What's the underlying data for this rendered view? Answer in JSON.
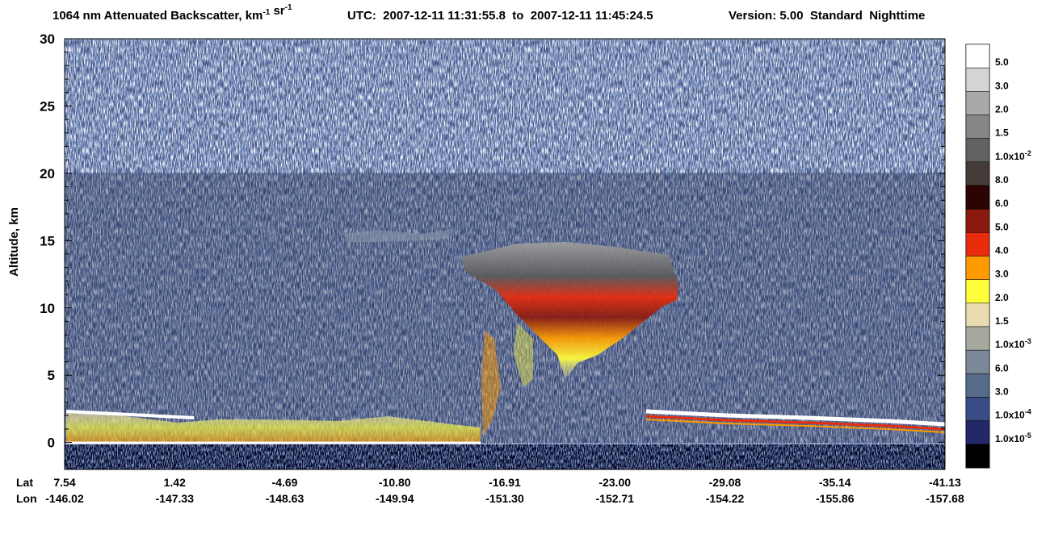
{
  "chart_data": {
    "type": "curtain",
    "title": [
      {
        "text": "1064 nm Attenuated Backscatter, km",
        "sup": "-1"
      },
      {
        "text": " sr",
        "sup": "-1"
      }
    ],
    "utc": "UTC:  2007-12-11 11:31:55.8  to  2007-12-11 11:45:24.5",
    "version": "Version: 5.00  Standard  Nighttime",
    "y_label": "Altitude, km",
    "ylim": [
      -2,
      30
    ],
    "yticks": [
      0,
      5,
      10,
      15,
      20,
      25,
      30
    ],
    "x_row_labels": [
      "Lat",
      "Lon"
    ],
    "lat_labels": [
      "7.54",
      "1.42",
      "-4.69",
      "-10.80",
      "-16.91",
      "-23.00",
      "-29.08",
      "-35.14",
      "-41.13"
    ],
    "lon_labels": [
      "-146.02",
      "-147.33",
      "-148.63",
      "-149.94",
      "-151.30",
      "-152.71",
      "-154.22",
      "-155.86",
      "-157.68"
    ],
    "colorbar": {
      "colors": [
        "#ffffff",
        "#d4d4d4",
        "#a9a9a9",
        "#868686",
        "#626262",
        "#453b39",
        "#2c0404",
        "#8a1a10",
        "#e82c0c",
        "#ff9a00",
        "#ffff3c",
        "#e8dcb0",
        "#a6aa9e",
        "#7a8898",
        "#566a8a",
        "#3a4c86",
        "#222868",
        "#000000"
      ],
      "labels": [
        {
          "text": "5.0"
        },
        {
          "text": "3.0"
        },
        {
          "text": "2.0"
        },
        {
          "text": "1.5"
        },
        {
          "text": "1.0x10",
          "sup": "-2"
        },
        {
          "text": "8.0"
        },
        {
          "text": "6.0"
        },
        {
          "text": "5.0"
        },
        {
          "text": "4.0"
        },
        {
          "text": "3.0"
        },
        {
          "text": "2.0"
        },
        {
          "text": "1.5"
        },
        {
          "text": "1.0x10",
          "sup": "-3"
        },
        {
          "text": "6.0"
        },
        {
          "text": "3.0"
        },
        {
          "text": "1.0x10",
          "sup": "-4"
        },
        {
          "text": "1.0x10",
          "sup": "-5"
        }
      ]
    }
  }
}
